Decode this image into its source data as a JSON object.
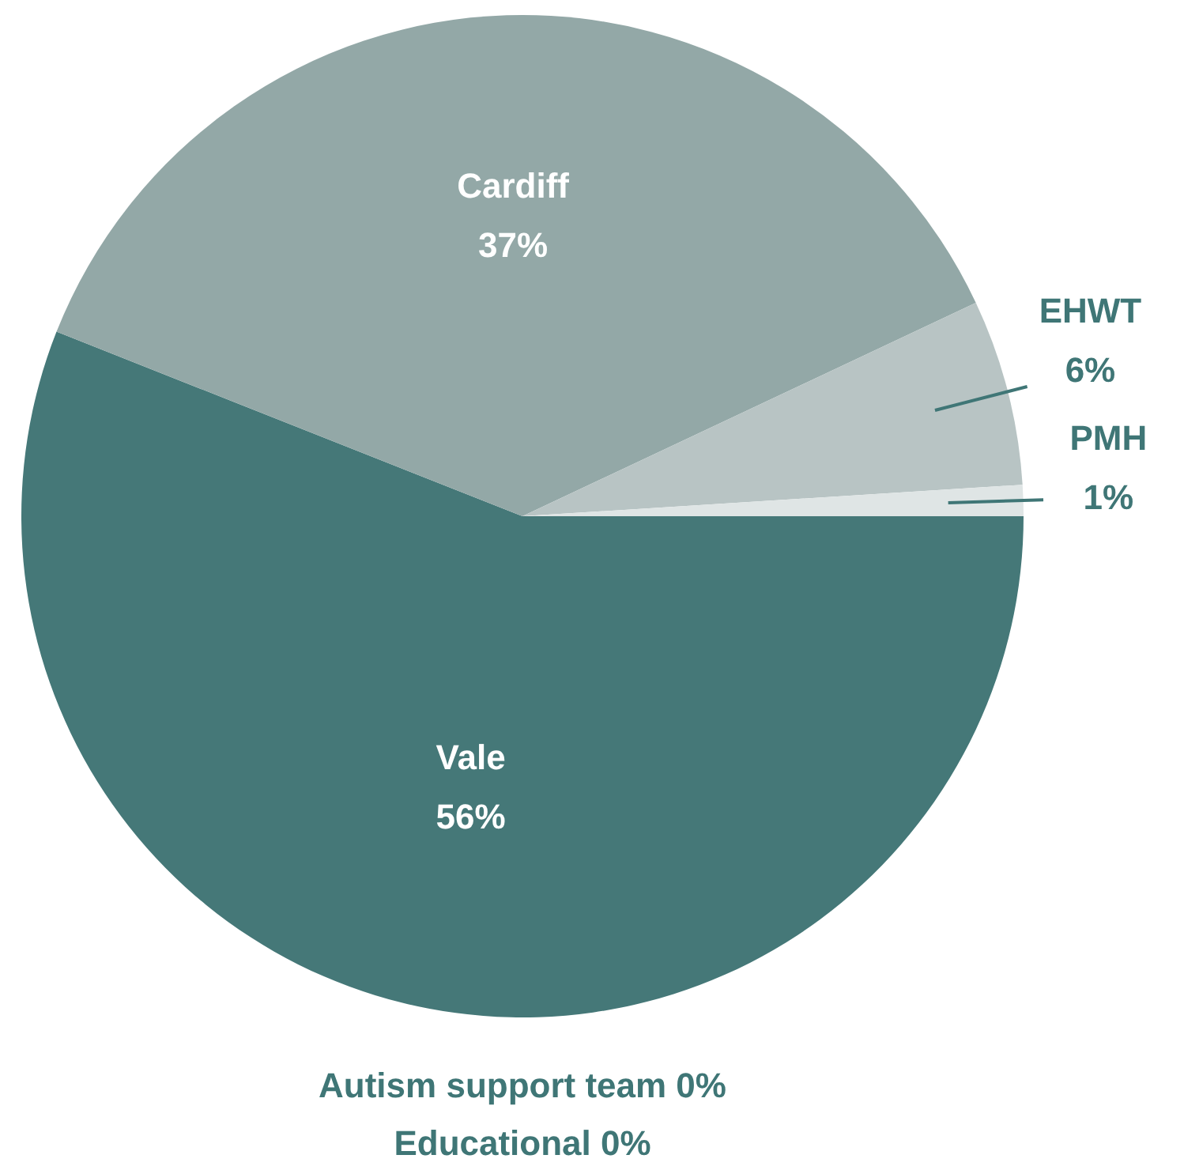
{
  "chart_data": {
    "type": "pie",
    "categories": [
      "Vale",
      "Cardiff",
      "EHWT",
      "PMH",
      "Autism support team",
      "Educational"
    ],
    "values": [
      56,
      37,
      6,
      1,
      0,
      0
    ],
    "value_labels": [
      "56%",
      "37%",
      "6%",
      "1%",
      "0%",
      "0%"
    ],
    "colors": [
      "#457878",
      "#93a8a7",
      "#b8c4c4",
      "#dfe5e5",
      "#2f6b6b",
      "#2f6b6b"
    ]
  }
}
